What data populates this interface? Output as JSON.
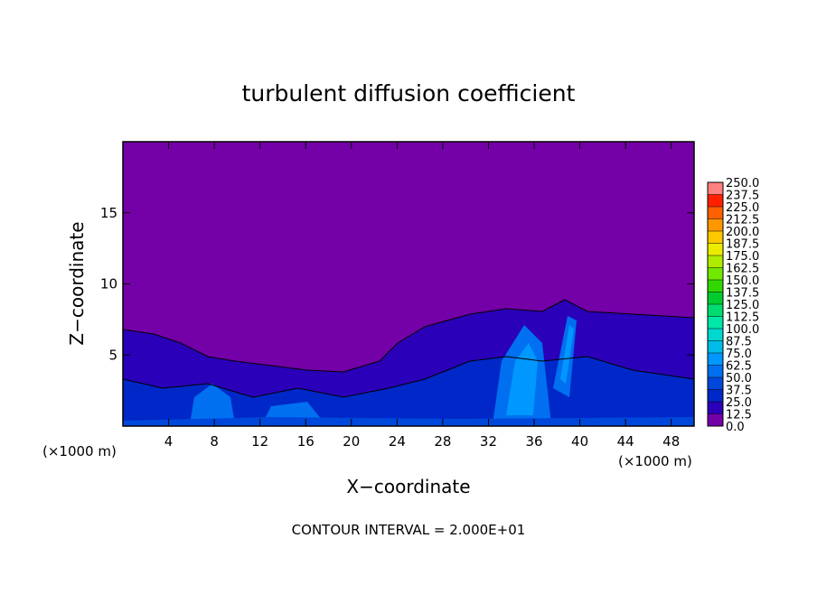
{
  "chart_data": {
    "type": "contour",
    "title": "turbulent diffusion coefficient",
    "x_label": "X−coordinate",
    "y_label": "Z−coordinate",
    "x_unit": "(×1000 m)",
    "x_unit_right": "(×1000 m)",
    "footer": "CONTOUR INTERVAL = 2.000E+01",
    "xlim": [
      0,
      50
    ],
    "ylim": [
      0,
      20
    ],
    "xticks": [
      4,
      8,
      12,
      16,
      20,
      24,
      28,
      32,
      36,
      40,
      44,
      48
    ],
    "yticks": [
      5,
      10,
      15
    ],
    "colorbar": {
      "levels": [
        {
          "value": 0,
          "label": "0.0"
        },
        12.5,
        {
          "value": 25,
          "label": "25.0"
        },
        37.5,
        {
          "value": 50,
          "label": "50.0"
        },
        62.5,
        {
          "value": 75,
          "label": "75.0"
        },
        87.5,
        {
          "value": 100,
          "label": "100.0"
        },
        112.5,
        {
          "value": 125,
          "label": "125.0"
        },
        137.5,
        {
          "value": 150,
          "label": "150.0"
        },
        162.5,
        {
          "value": 175,
          "label": "175.0"
        },
        187.5,
        {
          "value": 200,
          "label": "200.0"
        },
        212.5,
        {
          "value": 225,
          "label": "225.0"
        },
        237.5,
        {
          "value": 250,
          "label": "250.0"
        }
      ],
      "colors": [
        "#7400a8",
        "#2a00b8",
        "#0028c8",
        "#0048dc",
        "#0070f0",
        "#0098ff",
        "#00bce8",
        "#00d8d0",
        "#00e8a8",
        "#00dc70",
        "#00cc30",
        "#30d800",
        "#70e800",
        "#b0ec00",
        "#ecec00",
        "#ffc800",
        "#ff9800",
        "#ff6000",
        "#ff2000",
        "#ff8080"
      ]
    }
  }
}
